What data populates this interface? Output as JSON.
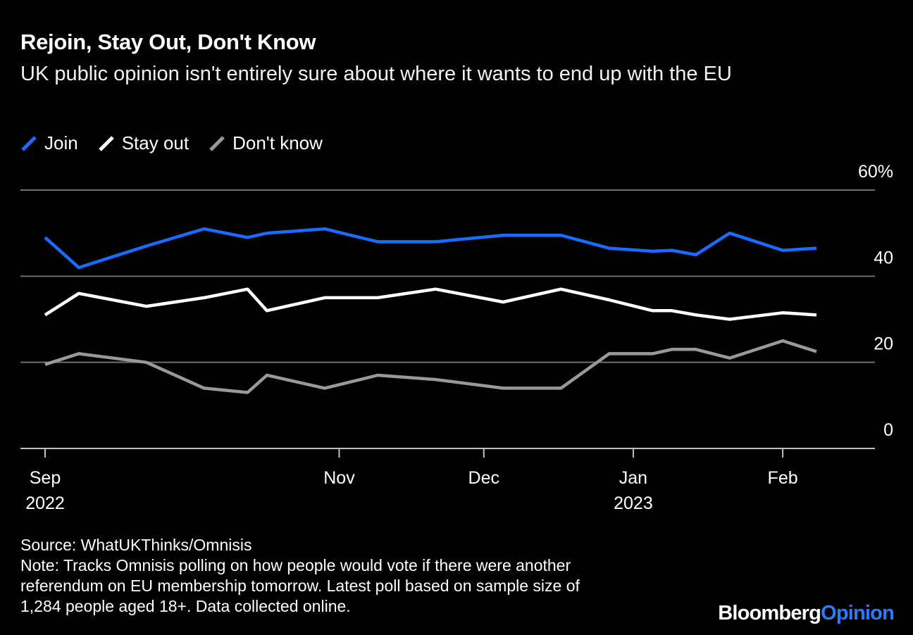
{
  "chart_data": {
    "type": "line",
    "title": "Rejoin, Stay Out, Don't Know",
    "subtitle": "UK public opinion isn't entirely sure about where it wants to end up with the EU",
    "xlabel": "",
    "ylabel": "",
    "ylim": [
      0,
      60
    ],
    "yticks": [
      {
        "value": 0,
        "label": "0"
      },
      {
        "value": 20,
        "label": "20"
      },
      {
        "value": 40,
        "label": "40"
      },
      {
        "value": 60,
        "label": "60%"
      }
    ],
    "xlim": [
      "2022-09-01",
      "2023-02-24"
    ],
    "xticks": [
      {
        "date": "2022-09-01",
        "label": "Sep",
        "year": "2022"
      },
      {
        "date": "2022-11-01",
        "label": "Nov",
        "year": ""
      },
      {
        "date": "2022-12-01",
        "label": "Dec",
        "year": ""
      },
      {
        "date": "2023-01-01",
        "label": "Jan",
        "year": "2023"
      },
      {
        "date": "2023-02-01",
        "label": "Feb",
        "year": ""
      }
    ],
    "x": [
      "2022-09-01",
      "2022-09-08",
      "2022-09-22",
      "2022-10-04",
      "2022-10-13",
      "2022-10-17",
      "2022-10-29",
      "2022-11-09",
      "2022-11-21",
      "2022-12-05",
      "2022-12-17",
      "2022-12-27",
      "2023-01-05",
      "2023-01-09",
      "2023-01-14",
      "2023-01-21",
      "2023-02-01",
      "2023-02-08"
    ],
    "series": [
      {
        "name": "Join",
        "color": "#1a6bff",
        "values": [
          49,
          42,
          47,
          51,
          49,
          50,
          51,
          48,
          48,
          49.5,
          49.5,
          46.5,
          45.8,
          46,
          45,
          50,
          46,
          46.5
        ]
      },
      {
        "name": "Stay out",
        "color": "#ffffff",
        "values": [
          31,
          36,
          33,
          35,
          37,
          32,
          35,
          35,
          37,
          34,
          37,
          34.5,
          32,
          32,
          31,
          30,
          31.5,
          31
        ]
      },
      {
        "name": "Don't know",
        "color": "#999999",
        "values": [
          19.5,
          22,
          20,
          14,
          13,
          17,
          14,
          17,
          16,
          14,
          14,
          22,
          22,
          23,
          23,
          21,
          25,
          22.5
        ]
      }
    ]
  },
  "legend": [
    {
      "label": "Join",
      "color": "#1a6bff"
    },
    {
      "label": "Stay out",
      "color": "#ffffff"
    },
    {
      "label": "Don't know",
      "color": "#999999"
    }
  ],
  "footer": {
    "source": "Source: WhatUKThinks/Omnisis",
    "note_line1": "Note: Tracks Omnisis polling on how people would vote if there were another",
    "note_line2": "referendum on EU membership tomorrow. Latest poll based on sample size of",
    "note_line3": "1,284 people aged 18+. Data collected online."
  },
  "brand": {
    "part1": "Bloomberg",
    "part2": "Opinion",
    "part1_color": "#ffffff",
    "part2_color": "#2b7bff"
  }
}
